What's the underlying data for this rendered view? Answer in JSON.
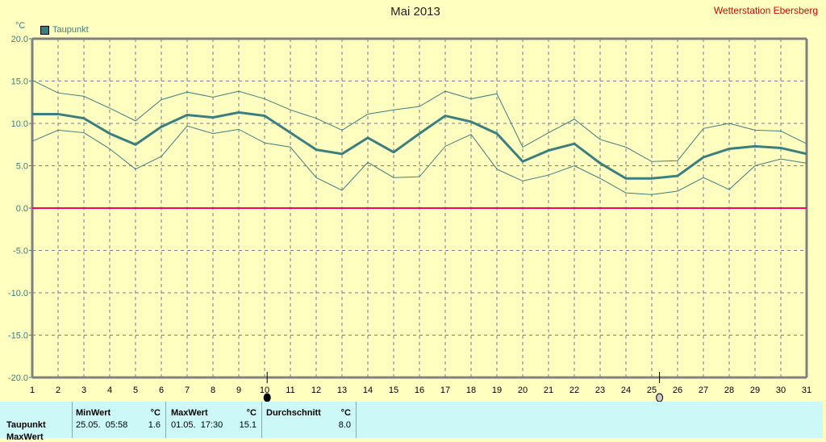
{
  "header": {
    "title": "Mai 2013",
    "station": "Wetterstation Ebersberg"
  },
  "legend": {
    "label": "Taupunkt",
    "color": "#3a7f80"
  },
  "chart_data": {
    "type": "line",
    "title": "Mai 2013",
    "ylabel": "°C",
    "ylim": [
      -20,
      20
    ],
    "yticks": [
      "20.0",
      "15.0",
      "10.0",
      "5.0",
      "0.0",
      "-5.0",
      "-10.0",
      "-15.0",
      "-20.0"
    ],
    "x": [
      1,
      2,
      3,
      4,
      5,
      6,
      7,
      8,
      9,
      10,
      11,
      12,
      13,
      14,
      15,
      16,
      17,
      18,
      19,
      20,
      21,
      22,
      23,
      24,
      25,
      26,
      27,
      28,
      29,
      30,
      31
    ],
    "grid": true,
    "series": [
      {
        "name": "Taupunkt Max",
        "values": [
          15.1,
          13.6,
          13.2,
          11.8,
          10.3,
          12.8,
          13.7,
          13.1,
          13.8,
          12.9,
          11.6,
          10.6,
          9.2,
          11.1,
          11.6,
          12.0,
          13.8,
          12.9,
          13.5,
          7.2,
          8.9,
          10.5,
          8.1,
          7.2,
          5.5,
          5.6,
          9.4,
          10.0,
          9.2,
          9.1,
          7.6
        ]
      },
      {
        "name": "Taupunkt",
        "values": [
          11.1,
          11.1,
          10.6,
          8.8,
          7.5,
          9.6,
          11.0,
          10.7,
          11.3,
          10.9,
          8.9,
          6.9,
          6.4,
          8.3,
          6.6,
          8.8,
          10.9,
          10.2,
          8.8,
          5.5,
          6.8,
          7.6,
          5.3,
          3.5,
          3.5,
          3.8,
          6.0,
          7.0,
          7.3,
          7.1,
          6.4
        ]
      },
      {
        "name": "Taupunkt Min",
        "values": [
          7.9,
          9.2,
          8.9,
          7.0,
          4.6,
          6.1,
          9.7,
          8.8,
          9.3,
          7.7,
          7.2,
          3.6,
          2.1,
          5.4,
          3.6,
          3.7,
          7.3,
          8.7,
          4.6,
          3.2,
          3.9,
          5.0,
          3.5,
          1.8,
          1.6,
          2.0,
          3.6,
          2.2,
          5.0,
          5.8,
          5.3
        ]
      }
    ],
    "reference_line": {
      "y": 0,
      "color": "#ff0066"
    },
    "moon_phases": [
      {
        "day": 10.1,
        "phase": "new-moon"
      },
      {
        "day": 25.3,
        "phase": "full-moon"
      }
    ]
  },
  "table": {
    "row_label": "Taupunkt",
    "row2_label": "MaxWert",
    "min_header": "MinWert",
    "min_unit": "°C",
    "min_time": "25.05.  05:58",
    "min_value": "1.6",
    "max_header": "MaxWert",
    "max_unit": "°C",
    "max_time": "01.05.  17:30",
    "max_value": "15.1",
    "avg_header": "Durchschnitt",
    "avg_unit": "°C",
    "avg_value": "8.0"
  }
}
